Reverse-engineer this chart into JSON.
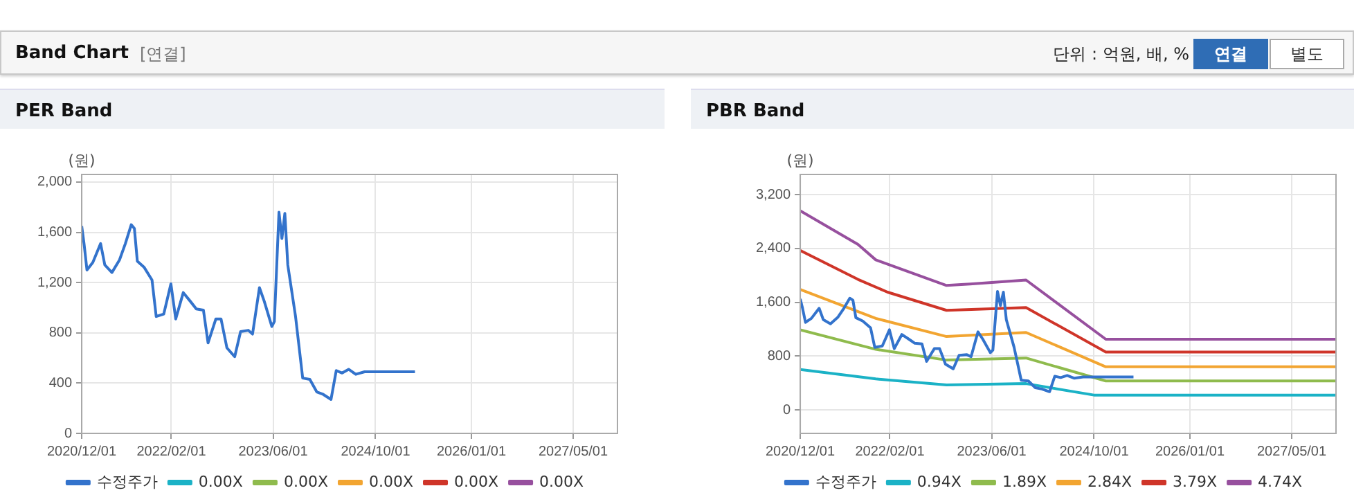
{
  "chart_data": [
    {
      "type": "other",
      "title": "Band Chart",
      "annotations": [
        "[연결]",
        "단위 : 억원, 배, %",
        "연결",
        "별도"
      ]
    },
    {
      "type": "line",
      "title": "PER Band",
      "ylabel": "(원)",
      "xlim": [
        "2020-12-01",
        "2027-11-28"
      ],
      "xticks": [
        {
          "value": "2020-12-01",
          "label": "2020/12/01"
        },
        {
          "value": "2022-02-01",
          "label": "2022/02/01"
        },
        {
          "value": "2023-06-01",
          "label": "2023/06/01"
        },
        {
          "value": "2024-10-01",
          "label": "2024/10/01"
        },
        {
          "value": "2026-01-01",
          "label": "2026/01/01"
        },
        {
          "value": "2027-05-01",
          "label": "2027/05/01"
        }
      ],
      "ylim": [
        0,
        2060
      ],
      "yticks": [
        {
          "value": 0,
          "label": "0"
        },
        {
          "value": 400,
          "label": "400"
        },
        {
          "value": 800,
          "label": "800"
        },
        {
          "value": 1200,
          "label": "1,200"
        },
        {
          "value": 1600,
          "label": "1,600"
        },
        {
          "value": 2000,
          "label": "2,000"
        }
      ],
      "grid": true,
      "legend": "bottom",
      "marker": "none",
      "series": [
        {
          "name": "수정주가",
          "color": "#3373cc",
          "x": [
            "2020-12-01",
            "2020-12-12",
            "2020-12-26",
            "2021-01-23",
            "2021-03-01",
            "2021-03-21",
            "2021-04-24",
            "2021-05-30",
            "2021-06-27",
            "2021-07-25",
            "2021-08-09",
            "2021-08-23",
            "2021-09-25",
            "2021-11-01",
            "2021-11-21",
            "2021-12-27",
            "2022-01-30",
            "2022-02-22",
            "2022-03-30",
            "2022-05-03",
            "2022-05-31",
            "2022-07-04",
            "2022-07-26",
            "2022-09-01",
            "2022-09-26",
            "2022-10-24",
            "2022-11-30",
            "2022-12-28",
            "2023-02-03",
            "2023-02-23",
            "2023-03-28",
            "2023-04-20",
            "2023-05-26",
            "2023-06-07",
            "2023-06-29",
            "2023-07-13",
            "2023-07-27",
            "2023-08-10",
            "2023-09-16",
            "2023-10-20",
            "2023-11-23",
            "2023-12-26",
            "2024-01-26",
            "2024-03-03",
            "2024-03-28",
            "2024-04-25",
            "2024-05-26",
            "2024-06-29",
            "2024-08-10",
            "2025-04-07"
          ],
          "values": [
            1650,
            1510,
            1300,
            1360,
            1510,
            1340,
            1280,
            1380,
            1510,
            1660,
            1630,
            1370,
            1320,
            1220,
            930,
            950,
            1190,
            910,
            1120,
            1050,
            990,
            980,
            720,
            910,
            910,
            680,
            610,
            810,
            820,
            790,
            1160,
            1050,
            850,
            890,
            1760,
            1550,
            1750,
            1340,
            930,
            440,
            430,
            330,
            310,
            270,
            500,
            480,
            510,
            470,
            490,
            490
          ]
        },
        {
          "name": "0.00X",
          "color": "#1bb2c6"
        },
        {
          "name": "0.00X",
          "color": "#8fbb4d"
        },
        {
          "name": "0.00X",
          "color": "#f2a531"
        },
        {
          "name": "0.00X",
          "color": "#cf3529"
        },
        {
          "name": "0.00X",
          "color": "#97509e"
        }
      ]
    },
    {
      "type": "line",
      "title": "PBR Band",
      "ylabel": "(원)",
      "xlim": [
        "2020-12-01",
        "2027-11-28"
      ],
      "xticks": [
        {
          "value": "2020-12-01",
          "label": "2020/12/01"
        },
        {
          "value": "2022-02-01",
          "label": "2022/02/01"
        },
        {
          "value": "2023-06-01",
          "label": "2023/06/01"
        },
        {
          "value": "2024-10-01",
          "label": "2024/10/01"
        },
        {
          "value": "2026-01-01",
          "label": "2026/01/01"
        },
        {
          "value": "2027-05-01",
          "label": "2027/05/01"
        }
      ],
      "ylim": [
        -350,
        3500
      ],
      "yticks": [
        {
          "value": 0,
          "label": "0"
        },
        {
          "value": 800,
          "label": "800"
        },
        {
          "value": 1600,
          "label": "1,600"
        },
        {
          "value": 2400,
          "label": "2,400"
        },
        {
          "value": 3200,
          "label": "3,200"
        }
      ],
      "grid": true,
      "legend": "bottom",
      "marker": "none",
      "series": [
        {
          "name": "수정주가",
          "color": "#3373cc",
          "x": [
            "2020-12-01",
            "2020-12-12",
            "2020-12-26",
            "2021-01-23",
            "2021-03-01",
            "2021-03-21",
            "2021-04-24",
            "2021-05-30",
            "2021-06-27",
            "2021-07-25",
            "2021-08-09",
            "2021-08-23",
            "2021-09-25",
            "2021-11-01",
            "2021-11-21",
            "2021-12-27",
            "2022-01-30",
            "2022-02-22",
            "2022-03-30",
            "2022-05-03",
            "2022-05-31",
            "2022-07-04",
            "2022-07-26",
            "2022-09-01",
            "2022-09-26",
            "2022-10-24",
            "2022-11-30",
            "2022-12-28",
            "2023-02-03",
            "2023-02-23",
            "2023-03-28",
            "2023-04-20",
            "2023-05-26",
            "2023-06-07",
            "2023-06-29",
            "2023-07-13",
            "2023-07-27",
            "2023-08-10",
            "2023-09-16",
            "2023-10-20",
            "2023-11-23",
            "2023-12-26",
            "2024-01-26",
            "2024-03-03",
            "2024-03-28",
            "2024-04-25",
            "2024-05-26",
            "2024-06-29",
            "2024-08-10",
            "2025-04-07"
          ],
          "values": [
            1650,
            1510,
            1300,
            1360,
            1510,
            1340,
            1280,
            1380,
            1510,
            1660,
            1630,
            1370,
            1320,
            1220,
            930,
            950,
            1190,
            910,
            1120,
            1050,
            990,
            980,
            720,
            910,
            910,
            680,
            610,
            810,
            820,
            790,
            1160,
            1050,
            850,
            890,
            1760,
            1550,
            1750,
            1340,
            930,
            440,
            430,
            330,
            310,
            270,
            500,
            480,
            510,
            470,
            490,
            490
          ]
        },
        {
          "name": "0.94X",
          "color": "#1bb2c6",
          "x": [
            "2020-12-01",
            "2021-11-26",
            "2022-10-29",
            "2023-11-12",
            "2024-09-30",
            "2027-11-28"
          ],
          "values": [
            600,
            460,
            370,
            390,
            220,
            220
          ]
        },
        {
          "name": "1.89X",
          "color": "#8fbb4d",
          "x": [
            "2020-12-01",
            "2021-11-26",
            "2022-10-29",
            "2023-11-12",
            "2024-11-26",
            "2027-11-28"
          ],
          "values": [
            1190,
            900,
            740,
            770,
            430,
            430
          ]
        },
        {
          "name": "2.84X",
          "color": "#f2a531",
          "x": [
            "2020-12-01",
            "2021-11-26",
            "2022-10-29",
            "2023-11-12",
            "2024-11-26",
            "2027-11-28"
          ],
          "values": [
            1790,
            1360,
            1090,
            1150,
            640,
            640
          ]
        },
        {
          "name": "3.79X",
          "color": "#cf3529",
          "x": [
            "2020-12-01",
            "2021-09-02",
            "2022-01-21",
            "2022-10-29",
            "2023-11-12",
            "2024-11-26",
            "2027-11-28"
          ],
          "values": [
            2370,
            1940,
            1750,
            1480,
            1520,
            860,
            860
          ]
        },
        {
          "name": "4.74X",
          "color": "#97509e",
          "x": [
            "2020-12-01",
            "2021-09-02",
            "2021-11-26",
            "2022-10-29",
            "2023-02-18",
            "2023-11-12",
            "2024-11-26",
            "2027-11-28"
          ],
          "values": [
            2960,
            2460,
            2230,
            1850,
            1870,
            1930,
            1050,
            1050
          ]
        }
      ]
    }
  ]
}
